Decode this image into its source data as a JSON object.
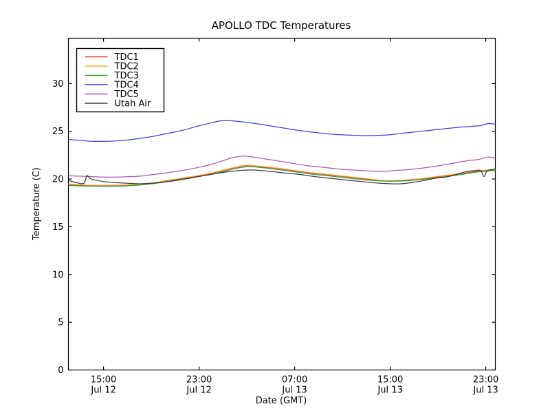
{
  "chart_data": {
    "type": "line",
    "title": "APOLLO TDC Temperatures",
    "xlabel": "Date (GMT)",
    "ylabel": "Temperature (C)",
    "ylim": [
      0,
      34.75
    ],
    "yticks": [
      0,
      5,
      10,
      15,
      20,
      25,
      30
    ],
    "x_hours_span": 35.74,
    "xticks": [
      {
        "h": 2.94,
        "time": "15:00",
        "date": "Jul 12"
      },
      {
        "h": 10.94,
        "time": "23:00",
        "date": "Jul 12"
      },
      {
        "h": 18.94,
        "time": "07:00",
        "date": "Jul 13"
      },
      {
        "h": 26.94,
        "time": "15:00",
        "date": "Jul 13"
      },
      {
        "h": 34.94,
        "time": "23:00",
        "date": "Jul 13"
      }
    ],
    "legend": {
      "position": "upper left"
    },
    "series": [
      {
        "name": "TDC1",
        "color": "#e23a2e",
        "points": [
          [
            0,
            19.45
          ],
          [
            1,
            19.35
          ],
          [
            2,
            19.3
          ],
          [
            3,
            19.3
          ],
          [
            4,
            19.3
          ],
          [
            5,
            19.35
          ],
          [
            6,
            19.4
          ],
          [
            7,
            19.55
          ],
          [
            8,
            19.75
          ],
          [
            9,
            19.95
          ],
          [
            10,
            20.15
          ],
          [
            11,
            20.35
          ],
          [
            12,
            20.6
          ],
          [
            13,
            20.9
          ],
          [
            14,
            21.2
          ],
          [
            14.9,
            21.4
          ],
          [
            16,
            21.3
          ],
          [
            17.5,
            21.1
          ],
          [
            19,
            20.85
          ],
          [
            20.5,
            20.6
          ],
          [
            22,
            20.4
          ],
          [
            23.5,
            20.2
          ],
          [
            25,
            20.0
          ],
          [
            26,
            19.85
          ],
          [
            27,
            19.8
          ],
          [
            28,
            19.85
          ],
          [
            29.5,
            20.0
          ],
          [
            31,
            20.25
          ],
          [
            32.5,
            20.5
          ],
          [
            33.5,
            20.7
          ],
          [
            34.3,
            20.83
          ],
          [
            35,
            20.9
          ],
          [
            35.74,
            20.95
          ]
        ]
      },
      {
        "name": "TDC2",
        "color": "#ffa92c",
        "points": [
          [
            0,
            19.5
          ],
          [
            1,
            19.4
          ],
          [
            2,
            19.35
          ],
          [
            3,
            19.35
          ],
          [
            4,
            19.35
          ],
          [
            5,
            19.4
          ],
          [
            6,
            19.45
          ],
          [
            7,
            19.6
          ],
          [
            8,
            19.8
          ],
          [
            9,
            20.0
          ],
          [
            10,
            20.2
          ],
          [
            11,
            20.4
          ],
          [
            12,
            20.65
          ],
          [
            13,
            20.95
          ],
          [
            14,
            21.25
          ],
          [
            14.9,
            21.45
          ],
          [
            16,
            21.35
          ],
          [
            17.5,
            21.15
          ],
          [
            19,
            20.9
          ],
          [
            20.5,
            20.65
          ],
          [
            22,
            20.45
          ],
          [
            23.5,
            20.25
          ],
          [
            25,
            20.05
          ],
          [
            26,
            19.9
          ],
          [
            27,
            19.85
          ],
          [
            28,
            19.9
          ],
          [
            29.5,
            20.05
          ],
          [
            31,
            20.3
          ],
          [
            32.5,
            20.55
          ],
          [
            33.5,
            20.75
          ],
          [
            34.3,
            20.88
          ],
          [
            35,
            20.95
          ],
          [
            35.74,
            21.0
          ]
        ]
      },
      {
        "name": "TDC3",
        "color": "#2e9b33",
        "points": [
          [
            0,
            19.32
          ],
          [
            2,
            19.25
          ],
          [
            4,
            19.25
          ],
          [
            5,
            19.3
          ],
          [
            6,
            19.38
          ],
          [
            7,
            19.5
          ],
          [
            8,
            19.68
          ],
          [
            9,
            19.88
          ],
          [
            10,
            20.08
          ],
          [
            11,
            20.28
          ],
          [
            12,
            20.5
          ],
          [
            13,
            20.8
          ],
          [
            14,
            21.1
          ],
          [
            15,
            21.3
          ],
          [
            16,
            21.22
          ],
          [
            17.5,
            21.0
          ],
          [
            19,
            20.75
          ],
          [
            20.5,
            20.5
          ],
          [
            22,
            20.3
          ],
          [
            23.5,
            20.1
          ],
          [
            25,
            19.9
          ],
          [
            26.5,
            19.78
          ],
          [
            28,
            19.8
          ],
          [
            29.5,
            19.95
          ],
          [
            31,
            20.15
          ],
          [
            32.5,
            20.4
          ],
          [
            33.5,
            20.6
          ],
          [
            34.5,
            20.78
          ],
          [
            35.74,
            20.9
          ]
        ]
      },
      {
        "name": "TDC4",
        "color": "#3b3bf0",
        "points": [
          [
            0,
            24.15
          ],
          [
            1,
            24.05
          ],
          [
            2,
            23.95
          ],
          [
            3,
            23.95
          ],
          [
            4,
            24.0
          ],
          [
            5,
            24.1
          ],
          [
            6,
            24.25
          ],
          [
            7,
            24.45
          ],
          [
            8,
            24.7
          ],
          [
            9,
            24.95
          ],
          [
            10,
            25.25
          ],
          [
            11,
            25.6
          ],
          [
            12,
            25.9
          ],
          [
            12.8,
            26.1
          ],
          [
            13.6,
            26.1
          ],
          [
            14.5,
            26.0
          ],
          [
            16,
            25.75
          ],
          [
            17.5,
            25.45
          ],
          [
            19,
            25.15
          ],
          [
            20.5,
            24.9
          ],
          [
            22,
            24.7
          ],
          [
            23.5,
            24.6
          ],
          [
            25,
            24.55
          ],
          [
            26.5,
            24.6
          ],
          [
            28,
            24.8
          ],
          [
            29.5,
            25.0
          ],
          [
            31,
            25.2
          ],
          [
            32.5,
            25.4
          ],
          [
            33.5,
            25.5
          ],
          [
            34.5,
            25.6
          ],
          [
            35.1,
            25.8
          ],
          [
            35.74,
            25.75
          ]
        ]
      },
      {
        "name": "TDC5",
        "color": "#a757a8",
        "points": [
          [
            0,
            20.35
          ],
          [
            1,
            20.3
          ],
          [
            2,
            20.25
          ],
          [
            3,
            20.2
          ],
          [
            4,
            20.2
          ],
          [
            5,
            20.25
          ],
          [
            6,
            20.3
          ],
          [
            7,
            20.45
          ],
          [
            8,
            20.6
          ],
          [
            9,
            20.8
          ],
          [
            10,
            21.0
          ],
          [
            11,
            21.25
          ],
          [
            12,
            21.55
          ],
          [
            13,
            21.95
          ],
          [
            13.8,
            22.25
          ],
          [
            14.6,
            22.4
          ],
          [
            15.5,
            22.3
          ],
          [
            17,
            22.0
          ],
          [
            18.5,
            21.7
          ],
          [
            20,
            21.4
          ],
          [
            21.5,
            21.2
          ],
          [
            23,
            21.0
          ],
          [
            24.5,
            20.9
          ],
          [
            26,
            20.8
          ],
          [
            27.5,
            20.9
          ],
          [
            29,
            21.05
          ],
          [
            30.5,
            21.3
          ],
          [
            32,
            21.6
          ],
          [
            33.3,
            21.9
          ],
          [
            34.3,
            22.05
          ],
          [
            35.1,
            22.3
          ],
          [
            35.74,
            22.2
          ]
        ]
      },
      {
        "name": "Utah Air",
        "color": "#3a3a3a",
        "points": [
          [
            0,
            19.85
          ],
          [
            0.7,
            19.62
          ],
          [
            1.3,
            19.55
          ],
          [
            1.55,
            20.35
          ],
          [
            1.85,
            20.05
          ],
          [
            2.4,
            19.85
          ],
          [
            3.2,
            19.7
          ],
          [
            4,
            19.62
          ],
          [
            5,
            19.55
          ],
          [
            6,
            19.5
          ],
          [
            7,
            19.55
          ],
          [
            8,
            19.68
          ],
          [
            9,
            19.85
          ],
          [
            10,
            20.05
          ],
          [
            11,
            20.28
          ],
          [
            12,
            20.5
          ],
          [
            13,
            20.7
          ],
          [
            14,
            20.85
          ],
          [
            15.3,
            20.95
          ],
          [
            16.5,
            20.85
          ],
          [
            18,
            20.65
          ],
          [
            19.5,
            20.45
          ],
          [
            21,
            20.2
          ],
          [
            22.5,
            20.0
          ],
          [
            24,
            19.8
          ],
          [
            25.5,
            19.62
          ],
          [
            27,
            19.5
          ],
          [
            28,
            19.52
          ],
          [
            29,
            19.68
          ],
          [
            30,
            19.9
          ],
          [
            30.8,
            20.1
          ],
          [
            31.6,
            20.2
          ],
          [
            32.4,
            20.45
          ],
          [
            33.2,
            20.75
          ],
          [
            34,
            20.88
          ],
          [
            34.5,
            20.88
          ],
          [
            34.8,
            20.25
          ],
          [
            35.05,
            20.85
          ],
          [
            35.74,
            21.05
          ]
        ]
      }
    ]
  }
}
